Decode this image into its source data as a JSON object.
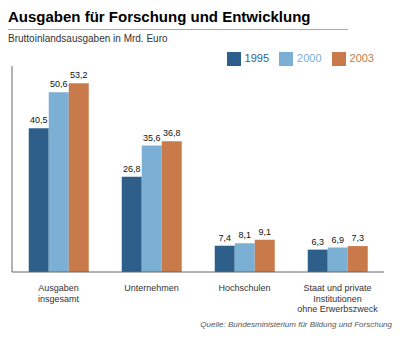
{
  "chart_data": {
    "type": "bar",
    "title": "Ausgaben für Forschung und Entwicklung",
    "subtitle": "Bruttoinlandsausgaben in Mrd. Euro",
    "source": "Quelle: Bundesministerium für Bildung und Forschung",
    "categories": [
      "Ausgaben\ninsgesamt",
      "Unternehmen",
      "Hochschulen",
      "Staat und private\nInstitutionen\nohne Erwerbszweck"
    ],
    "series": [
      {
        "name": "1995",
        "color": "#2e5f8a",
        "values": [
          40.5,
          26.8,
          7.4,
          6.3
        ],
        "value_labels": [
          "40,5",
          "26,8",
          "7,4",
          "6,3"
        ]
      },
      {
        "name": "2000",
        "color": "#7bafd4",
        "values": [
          50.6,
          35.6,
          8.1,
          6.9
        ],
        "value_labels": [
          "50,6",
          "35,6",
          "8,1",
          "6,9"
        ]
      },
      {
        "name": "2003",
        "color": "#c97a4a",
        "values": [
          53.2,
          36.8,
          9.1,
          7.3
        ],
        "value_labels": [
          "53,2",
          "36,8",
          "9,1",
          "7,3"
        ]
      }
    ],
    "ylim": [
      0,
      58
    ],
    "data_labels": true,
    "legend": "upper right",
    "tick_labels": "x",
    "grid": false
  }
}
